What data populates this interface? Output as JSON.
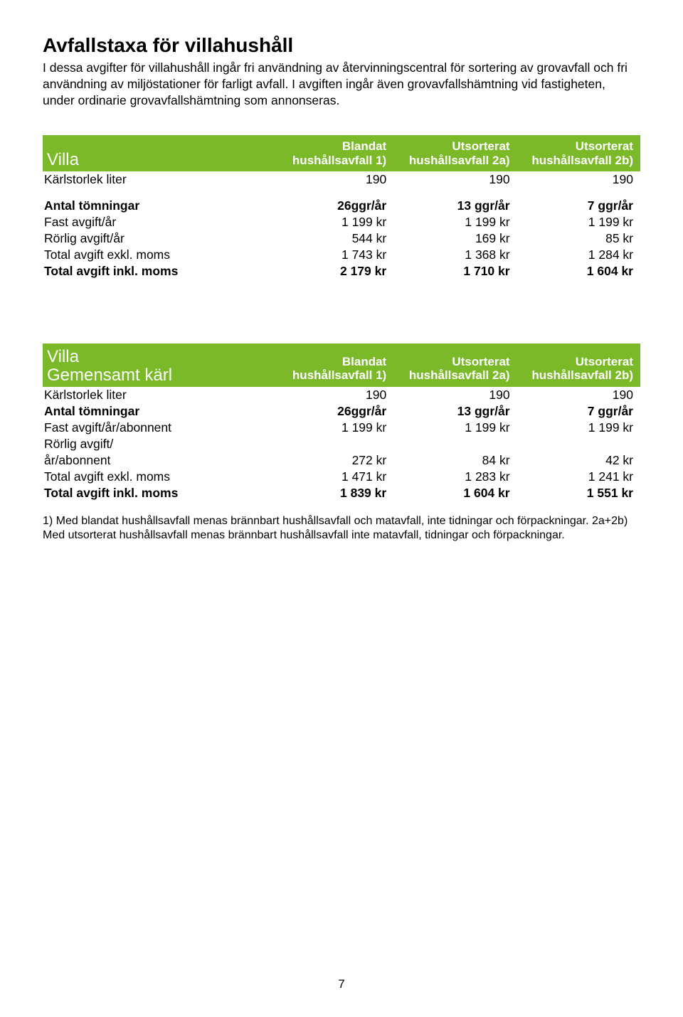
{
  "title": "Avfallstaxa för villahushåll",
  "intro": "I dessa avgifter för villahushåll ingår fri användning av återvinningscentral för sortering av grovavfall och fri användning av miljöstationer för farligt avfall. I avgiften ingår även grovavfallshämtning vid fastigheten, under ordinarie grovavfallshämtning som annonseras.",
  "table1": {
    "name": "Villa",
    "colHeads": [
      {
        "l1": "Blandat",
        "l2": "hushållsavfall 1)"
      },
      {
        "l1": "Utsorterat",
        "l2": "hushållsavfall 2a)"
      },
      {
        "l1": "Utsorterat",
        "l2": "hushållsavfall 2b)"
      }
    ],
    "rows": [
      {
        "label": "Kärlstorlek liter",
        "c": [
          "190",
          "190",
          "190"
        ],
        "bold": false
      },
      {
        "spacer": true
      },
      {
        "label": "Antal tömningar",
        "c": [
          "26ggr/år",
          "13 ggr/år",
          "7 ggr/år"
        ],
        "bold": true
      },
      {
        "label": "Fast avgift/år",
        "c": [
          "1 199 kr",
          "1 199 kr",
          "1 199 kr"
        ],
        "bold": false
      },
      {
        "label": "Rörlig avgift/år",
        "c": [
          "544 kr",
          "169 kr",
          "85 kr"
        ],
        "bold": false
      },
      {
        "label": "Total avgift exkl. moms",
        "c": [
          "1 743 kr",
          "1 368 kr",
          "1 284 kr"
        ],
        "bold": false
      },
      {
        "label": "Total avgift inkl. moms",
        "c": [
          "2 179 kr",
          "1 710 kr",
          "1 604 kr"
        ],
        "bold": true
      }
    ]
  },
  "table2": {
    "nameLine1": "Villa",
    "nameLine2": "Gemensamt kärl",
    "colHeads": [
      {
        "l1": "Blandat",
        "l2": "hushållsavfall 1)"
      },
      {
        "l1": "Utsorterat",
        "l2": "hushållsavfall 2a)"
      },
      {
        "l1": "Utsorterat",
        "l2": "hushållsavfall 2b)"
      }
    ],
    "rows": [
      {
        "label": "Kärlstorlek liter",
        "c": [
          "190",
          "190",
          "190"
        ],
        "bold": false
      },
      {
        "label": "Antal tömningar",
        "c": [
          "26ggr/år",
          "13 ggr/år",
          "7 ggr/år"
        ],
        "bold": true
      },
      {
        "label": "Fast avgift/år/abonnent",
        "c": [
          "1 199 kr",
          "1 199 kr",
          "1 199 kr"
        ],
        "bold": false
      },
      {
        "label": "Rörlig avgift/",
        "c": [
          "",
          "",
          ""
        ],
        "bold": false
      },
      {
        "label": "år/abonnent",
        "c": [
          "272 kr",
          "84 kr",
          "42 kr"
        ],
        "bold": false
      },
      {
        "label": "Total avgift exkl. moms",
        "c": [
          "1 471 kr",
          "1 283 kr",
          "1 241 kr"
        ],
        "bold": false
      },
      {
        "label": "Total avgift inkl. moms",
        "c": [
          "1 839 kr",
          "1 604 kr",
          "1 551 kr"
        ],
        "bold": true
      }
    ]
  },
  "footnotes": "1) Med blandat hushållsavfall menas brännbart hushållsavfall och matavfall, inte tidningar och förpackningar. 2a+2b) Med utsorterat hushållsavfall menas brännbart hushållsavfall inte matavfall, tidningar och förpackningar.",
  "pageNumber": "7",
  "colors": {
    "headerBg": "#7bb928",
    "headerText": "#ffffff",
    "bodyText": "#000000",
    "pageBg": "#ffffff"
  }
}
